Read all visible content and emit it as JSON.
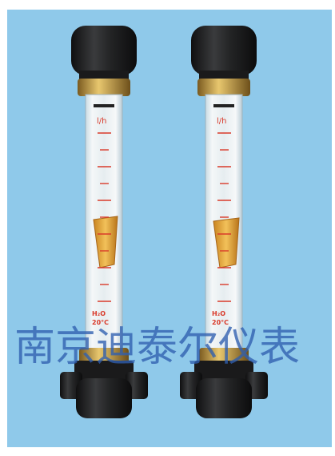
{
  "image": {
    "subject": "two-rotameter-flowmeters",
    "background_color": "#8fc9ea",
    "cap_color": "#1c1c1c",
    "scale_mark_color": "#d93a2a",
    "float_color": "#e0a238"
  },
  "flowmeters": [
    {
      "unit_label": "l/h",
      "medium_label": "H₂O",
      "temperature_label": "20°C"
    },
    {
      "unit_label": "l/h",
      "medium_label": "H₂O",
      "temperature_label": "20°C"
    }
  ],
  "watermark": {
    "text": "南京迪泰尔仪表"
  }
}
